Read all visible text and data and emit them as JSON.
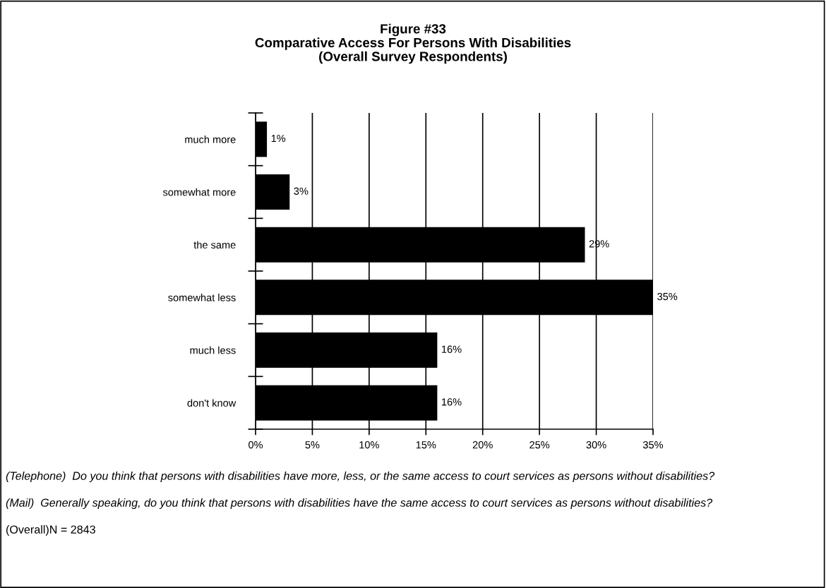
{
  "chart_data": {
    "type": "bar",
    "orientation": "horizontal",
    "title": "Figure #33\nComparative Access For Persons With Disabilities\n(Overall Survey Respondents)",
    "categories": [
      "much more",
      "somewhat more",
      "the same",
      "somewhat less",
      "much less",
      "don't know"
    ],
    "values": [
      1,
      3,
      29,
      35,
      16,
      16
    ],
    "value_labels": [
      "1%",
      "3%",
      "29%",
      "35%",
      "16%",
      "16%"
    ],
    "color": "#000000",
    "xlim": [
      0,
      35
    ],
    "xticks": [
      {
        "value": 0,
        "label": "0%"
      },
      {
        "value": 5,
        "label": "5%"
      },
      {
        "value": 10,
        "label": "10%"
      },
      {
        "value": 15,
        "label": "15%"
      },
      {
        "value": 20,
        "label": "20%"
      },
      {
        "value": 25,
        "label": "25%"
      },
      {
        "value": 30,
        "label": "30%"
      },
      {
        "value": 35,
        "label": "35%"
      }
    ],
    "grid": "x",
    "annotations": [
      "(Telephone)  Do you think that persons with disabilities have more, less, or the same access to court services as persons without disabilities?",
      "(Mail)  Generally speaking, do you think that persons with disabilities have the same access to court services as persons without disabilities?",
      "(Overall)N = 2843"
    ]
  }
}
